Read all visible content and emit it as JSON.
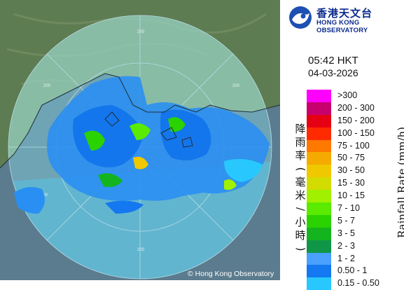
{
  "org": {
    "name_cn": "香港天文台",
    "name_en": "HONG KONG OBSERVATORY"
  },
  "time": "05:42 HKT",
  "date": "04-03-2026",
  "range_labels": [
    "200",
    "200",
    "200",
    "200",
    "200"
  ],
  "copyright": "© Hong Kong Observatory",
  "legend": {
    "title_cn": "降雨率(毫米/小時)",
    "title_en": "Rainfall Rate (mm/h)",
    "items": [
      {
        "label": ">300",
        "color": "#ff00ff"
      },
      {
        "label": "200 - 300",
        "color": "#c8006e"
      },
      {
        "label": "150 - 200",
        "color": "#e60014"
      },
      {
        "label": "100 - 150",
        "color": "#ff2a00"
      },
      {
        "label": "75 - 100",
        "color": "#ff7800"
      },
      {
        "label": "50 - 75",
        "color": "#f5aa00"
      },
      {
        "label": "30 - 50",
        "color": "#f0c800"
      },
      {
        "label": "15 - 30",
        "color": "#d2dc00"
      },
      {
        "label": "10 - 15",
        "color": "#a0f000"
      },
      {
        "label": "7 - 10",
        "color": "#5aeb00"
      },
      {
        "label": "5 - 7",
        "color": "#2ad200"
      },
      {
        "label": "3 - 5",
        "color": "#14b41e"
      },
      {
        "label": "2 - 3",
        "color": "#0f9646"
      },
      {
        "label": "1 - 2",
        "color": "#4aa0ff"
      },
      {
        "label": "0.50 - 1",
        "color": "#1478f0"
      },
      {
        "label": "0.15 - 0.50",
        "color": "#28c8ff"
      }
    ]
  }
}
